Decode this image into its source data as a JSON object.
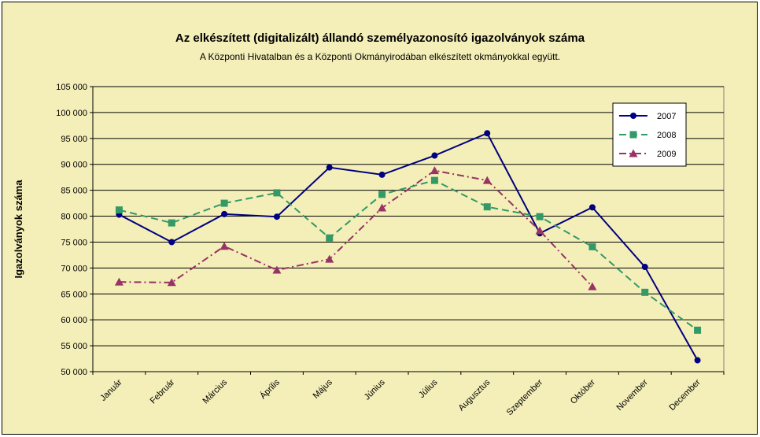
{
  "chart_data": {
    "type": "line",
    "title": "Az elkészített (digitalizált) állandó személyazonosító igazolványok száma",
    "subtitle": "A Központi Hivatalban és a Központi Okmányirodában elkészített okmányokkal együtt.",
    "xlabel": "",
    "ylabel": "Igazolványok száma",
    "categories": [
      "Január",
      "Február",
      "Március",
      "Április",
      "Május",
      "Június",
      "Július",
      "Augusztus",
      "Szeptember",
      "Október",
      "November",
      "December"
    ],
    "ylim": [
      50000,
      105000
    ],
    "yticks": [
      50000,
      55000,
      60000,
      65000,
      70000,
      75000,
      80000,
      85000,
      90000,
      95000,
      100000,
      105000
    ],
    "ytick_labels": [
      "50 000",
      "55 000",
      "60 000",
      "65 000",
      "70 000",
      "75 000",
      "80 000",
      "85 000",
      "90 000",
      "95 000",
      "100 000",
      "105 000"
    ],
    "grid": true,
    "legend_position": "top-right",
    "series": [
      {
        "name": "2007",
        "color": "#000080",
        "marker": "diamond",
        "dash": "solid",
        "values": [
          80300,
          75000,
          80400,
          79900,
          89400,
          88000,
          91700,
          96000,
          76700,
          81700,
          70200,
          52200
        ]
      },
      {
        "name": "2008",
        "color": "#339966",
        "marker": "square",
        "dash": "dashed",
        "values": [
          81200,
          78700,
          82500,
          84500,
          75800,
          84200,
          86900,
          81800,
          79900,
          74100,
          65300,
          58000
        ]
      },
      {
        "name": "2009",
        "color": "#993366",
        "marker": "triangle",
        "dash": "dashdot",
        "values": [
          67300,
          67200,
          74200,
          69600,
          71700,
          81600,
          88800,
          86900,
          77200,
          66400,
          null,
          null
        ]
      }
    ]
  }
}
